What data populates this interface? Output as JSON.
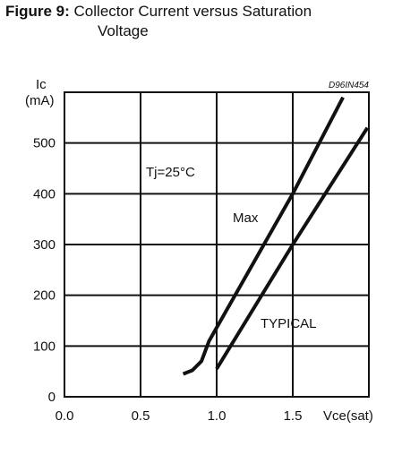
{
  "figure": {
    "label": "Figure 9:",
    "title_line1": "Collector Current versus Saturation",
    "title_line2": "Voltage"
  },
  "chart_data": {
    "type": "line",
    "title": "Collector Current versus Saturation Voltage",
    "drawing_code": "D96IN454",
    "ylabel_line1": "Ic",
    "ylabel_line2": "(mA)",
    "xlabel": "Vce(sat)",
    "xlim": [
      0,
      2.0
    ],
    "ylim": [
      0,
      600
    ],
    "x_ticks": [
      "0.0",
      "0.5",
      "1.0",
      "1.5"
    ],
    "y_ticks": [
      "0",
      "100",
      "200",
      "300",
      "400",
      "500"
    ],
    "x_tick_values": [
      0,
      0.5,
      1.0,
      1.5
    ],
    "y_tick_values": [
      0,
      100,
      200,
      300,
      400,
      500
    ],
    "grid": true,
    "annotations": {
      "condition": "Tj=25°C",
      "max_label": "Max",
      "typical_label": "TYPICAL"
    },
    "series": [
      {
        "name": "Max",
        "x": [
          0.78,
          0.84,
          0.9,
          0.95,
          1.5,
          1.83
        ],
        "y": [
          45,
          52,
          70,
          110,
          400,
          590
        ]
      },
      {
        "name": "TYPICAL",
        "x": [
          1.0,
          1.5,
          1.99
        ],
        "y": [
          55,
          300,
          530
        ]
      }
    ]
  }
}
